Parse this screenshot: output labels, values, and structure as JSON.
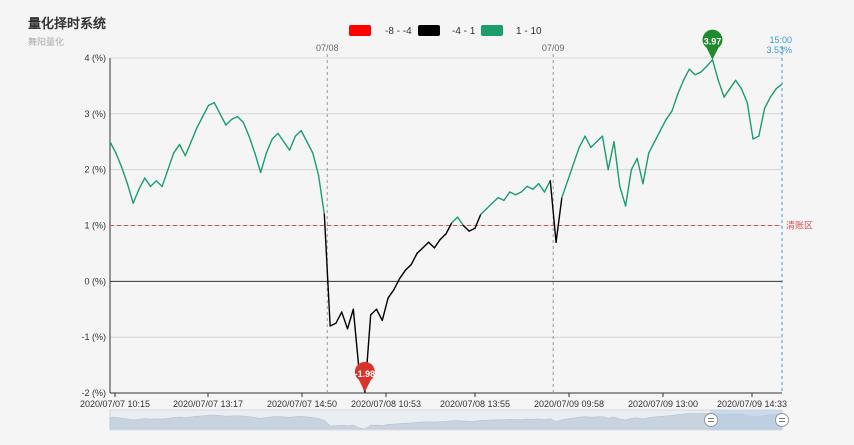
{
  "header": {
    "title": "量化择时系统",
    "subtitle": "舞阳量化"
  },
  "legend": [
    {
      "label": "-8 - -4",
      "color": "#ff0000"
    },
    {
      "label": "-4 - 1",
      "color": "#000000"
    },
    {
      "label": "1 - 10",
      "color": "#1a9e6a"
    }
  ],
  "annotations": {
    "day_labels": [
      "07/08",
      "07/09"
    ],
    "end_time": "15:00",
    "end_value": "3.53%",
    "zone_label": "清账区",
    "max_pin": "3.97",
    "min_pin": "-1.98"
  },
  "colors": {
    "red": "#ff0000",
    "black": "#000000",
    "green": "#1a9e6a",
    "pin_max": "#1f8a2e",
    "pin_min": "#d9342b",
    "end_line": "#3a9ad9",
    "zone_line": "#d9534f"
  },
  "chart_data": {
    "type": "line",
    "ylabel": "",
    "ylim": [
      -2,
      4
    ],
    "yticks": [
      -2,
      -1,
      0,
      1,
      2,
      3,
      4
    ],
    "ytick_labels": [
      "-2 (%)",
      "-1 (%)",
      "0 (%)",
      "1 (%)",
      "2 (%)",
      "3 (%)",
      "4 (%)"
    ],
    "xtick_labels": [
      "2020/07/07 10:15",
      "2020/07/07 13:17",
      "2020/07/07 14:50",
      "2020/07/08 10:53",
      "2020/07/08 13:55",
      "2020/07/09 09:58",
      "2020/07/09 13:00",
      "2020/07/09 14:33"
    ],
    "day_breaks": [
      1,
      2
    ],
    "reference_line": 1,
    "color_bands": [
      {
        "min": -8,
        "max": -4,
        "color": "#ff0000"
      },
      {
        "min": -4,
        "max": 1,
        "color": "#000000"
      },
      {
        "min": 1,
        "max": 10,
        "color": "#1a9e6a"
      }
    ],
    "series": [
      {
        "days": [
          [
            2.5,
            2.3,
            2.05,
            1.75,
            1.4,
            1.65,
            1.85,
            1.7,
            1.8,
            1.7,
            2.0,
            2.3,
            2.45,
            2.25,
            2.5,
            2.75,
            2.95,
            3.15,
            3.2,
            3.0,
            2.8,
            2.9,
            2.95,
            2.85,
            2.6,
            2.3,
            1.95,
            2.3,
            2.55,
            2.65,
            2.5,
            2.35,
            2.6,
            2.7,
            2.5,
            2.3,
            1.9,
            1.2
          ],
          [
            -0.8,
            -0.75,
            -0.55,
            -0.85,
            -0.5,
            -1.6,
            -1.98,
            -0.6,
            -0.5,
            -0.7,
            -0.3,
            -0.15,
            0.05,
            0.2,
            0.3,
            0.5,
            0.6,
            0.7,
            0.6,
            0.75,
            0.85,
            1.05,
            1.15,
            1.0,
            0.9,
            0.95,
            1.2,
            1.3,
            1.4,
            1.5,
            1.45,
            1.6,
            1.55,
            1.6,
            1.7,
            1.65,
            1.75,
            1.6,
            1.8
          ],
          [
            0.7,
            1.5,
            1.8,
            2.1,
            2.4,
            2.6,
            2.4,
            2.5,
            2.6,
            2.0,
            2.5,
            1.7,
            1.35,
            2.0,
            2.2,
            1.75,
            2.3,
            2.5,
            2.7,
            2.9,
            3.05,
            3.35,
            3.6,
            3.8,
            3.7,
            3.75,
            3.85,
            3.97,
            3.6,
            3.3,
            3.45,
            3.6,
            3.45,
            3.2,
            2.55,
            2.6,
            3.1,
            3.3,
            3.45,
            3.53
          ]
        ]
      }
    ]
  }
}
